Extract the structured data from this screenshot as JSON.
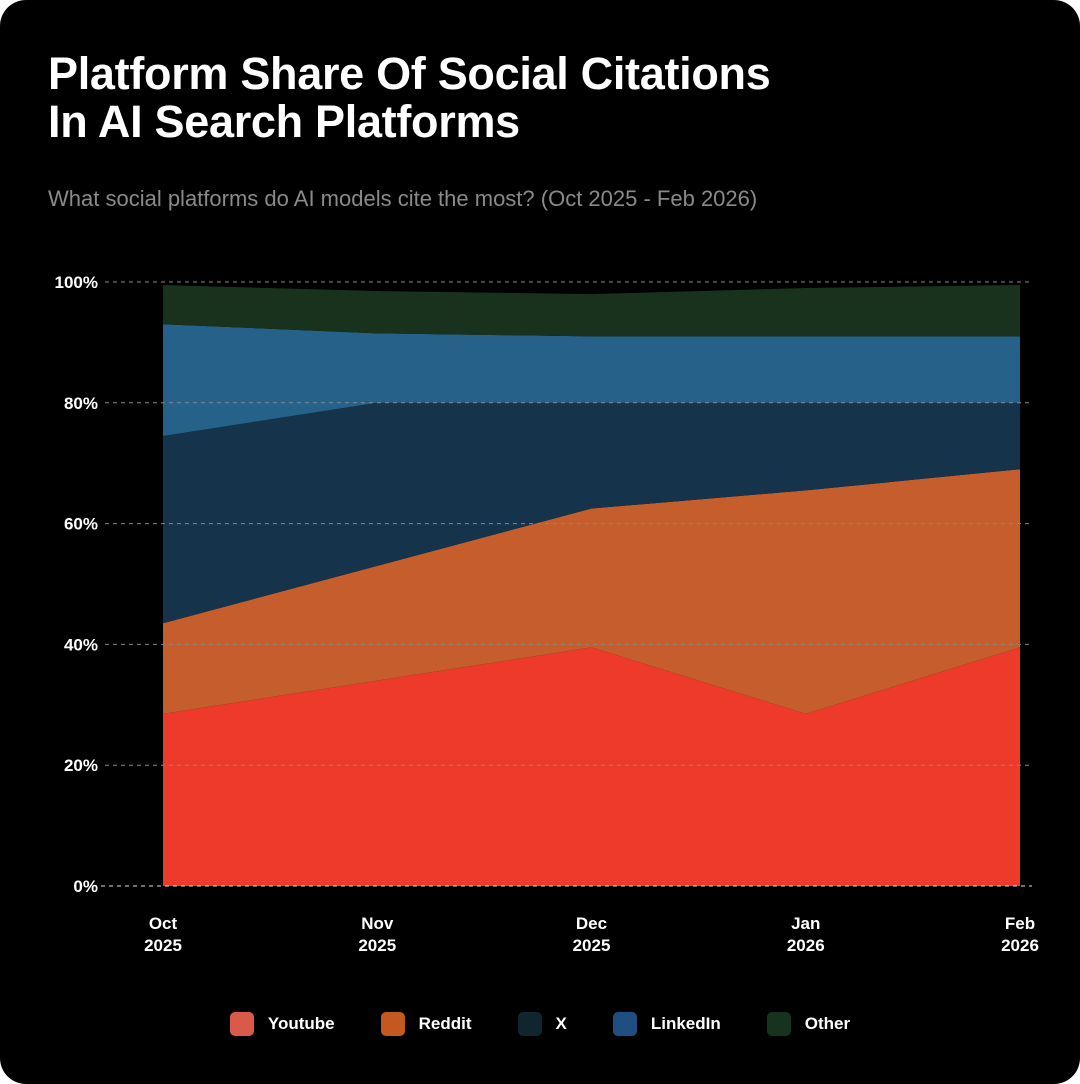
{
  "title_line1": "Platform Share Of Social Citations",
  "title_line2": "In AI Search Platforms",
  "subtitle": "What social platforms do AI models cite the most? (Oct 2025 - Feb 2026)",
  "chart_data": {
    "type": "area",
    "stacked": true,
    "categories": [
      [
        "Oct",
        "2025"
      ],
      [
        "Nov",
        "2025"
      ],
      [
        "Dec",
        "2025"
      ],
      [
        "Jan",
        "2026"
      ],
      [
        "Feb",
        "2026"
      ]
    ],
    "yticks": [
      "0%",
      "20%",
      "40%",
      "60%",
      "80%",
      "100%"
    ],
    "ylim": [
      0,
      100
    ],
    "grid": true,
    "legend_position": "bottom",
    "series": [
      {
        "name": "Youtube",
        "color": "#ee3a2a",
        "legend_color": "#d95a48",
        "values": [
          28.5,
          34,
          39.5,
          28.5,
          39.5
        ]
      },
      {
        "name": "Reddit",
        "color": "#c55e2c",
        "legend_color": "#c4591f",
        "values": [
          15,
          19,
          23,
          37,
          29.5
        ]
      },
      {
        "name": "X",
        "color": "#15334a",
        "legend_color": "#10262f",
        "values": [
          31,
          27,
          17.5,
          14.5,
          11
        ]
      },
      {
        "name": "LinkedIn",
        "color": "#256189",
        "legend_color": "#1e4f80",
        "values": [
          18.5,
          11.5,
          11,
          11,
          11
        ]
      },
      {
        "name": "Other",
        "color": "#19321e",
        "legend_color": "#17331f",
        "values": [
          6.5,
          7,
          7,
          8,
          8.5
        ]
      }
    ]
  }
}
